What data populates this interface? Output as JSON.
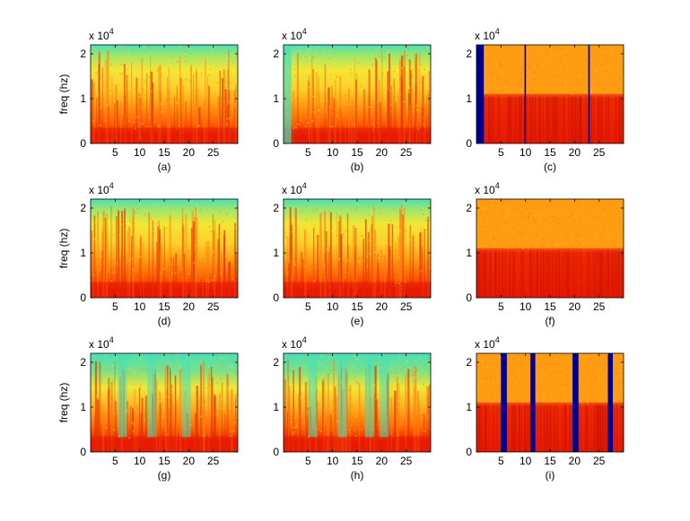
{
  "figure": {
    "ylabel": "freq (hz)",
    "multiplier_base": "x 10",
    "multiplier_exponent": "4",
    "x_ticks": [
      "5",
      "10",
      "15",
      "20",
      "25"
    ],
    "y_ticks": [
      "0",
      "1",
      "2"
    ]
  },
  "colors": {
    "background": "#ffffff",
    "colormap": "jet",
    "dark_blue": "#00008f",
    "cyan": "#48e0b8",
    "yellow": "#f2e636",
    "orange": "#ff9c12",
    "red": "#e81a00"
  },
  "chart_data": [
    {
      "type": "heatmap",
      "label": "(a)",
      "style": "speech-like",
      "ylabel": "freq (hz)",
      "xlim": [
        0,
        30
      ],
      "ylim": [
        0,
        2.2
      ],
      "y_scale": "x 10^4",
      "dropouts": []
    },
    {
      "type": "heatmap",
      "label": "(b)",
      "style": "speech-like",
      "ylabel": "",
      "xlim": [
        0,
        30
      ],
      "ylim": [
        0,
        2.2
      ],
      "y_scale": "x 10^4",
      "dropouts": []
    },
    {
      "type": "heatmap",
      "label": "(c)",
      "style": "noise-like",
      "ylabel": "",
      "xlim": [
        0,
        30
      ],
      "ylim": [
        0,
        2.2
      ],
      "y_scale": "x 10^4",
      "dropouts": [
        [
          0,
          1.5
        ],
        [
          9.8,
          10.1
        ],
        [
          22.8,
          23.1
        ]
      ]
    },
    {
      "type": "heatmap",
      "label": "(d)",
      "style": "speech-like",
      "ylabel": "freq (hz)",
      "xlim": [
        0,
        30
      ],
      "ylim": [
        0,
        2.2
      ],
      "y_scale": "x 10^4",
      "dropouts": []
    },
    {
      "type": "heatmap",
      "label": "(e)",
      "style": "speech-like",
      "ylabel": "",
      "xlim": [
        0,
        30
      ],
      "ylim": [
        0,
        2.2
      ],
      "y_scale": "x 10^4",
      "dropouts": []
    },
    {
      "type": "heatmap",
      "label": "(f)",
      "style": "noise-like",
      "ylabel": "",
      "xlim": [
        0,
        30
      ],
      "ylim": [
        0,
        2.2
      ],
      "y_scale": "x 10^4",
      "dropouts": []
    },
    {
      "type": "heatmap",
      "label": "(g)",
      "style": "speech-like",
      "ylabel": "freq (hz)",
      "xlim": [
        0,
        30
      ],
      "ylim": [
        0,
        2.2
      ],
      "y_scale": "x 10^4",
      "dropouts": []
    },
    {
      "type": "heatmap",
      "label": "(h)",
      "style": "speech-like",
      "ylabel": "",
      "xlim": [
        0,
        30
      ],
      "ylim": [
        0,
        2.2
      ],
      "y_scale": "x 10^4",
      "dropouts": []
    },
    {
      "type": "heatmap",
      "label": "(i)",
      "style": "noise-like",
      "ylabel": "",
      "xlim": [
        0,
        30
      ],
      "ylim": [
        0,
        2.2
      ],
      "y_scale": "x 10^4",
      "dropouts": [
        [
          5.0,
          6.2
        ],
        [
          11.0,
          12.0
        ],
        [
          19.6,
          20.8
        ],
        [
          26.8,
          27.8
        ]
      ]
    }
  ]
}
